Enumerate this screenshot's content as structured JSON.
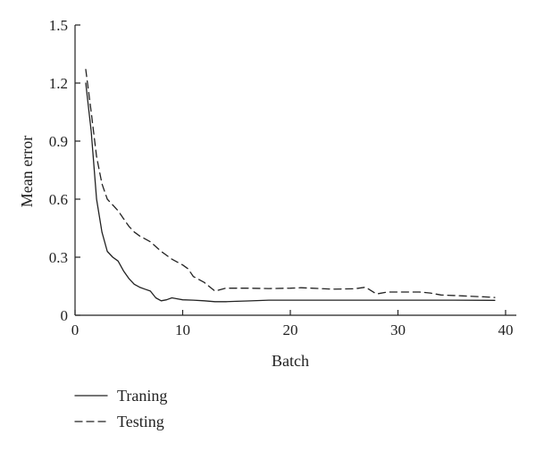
{
  "chart_data": {
    "type": "line",
    "xlabel": "Batch",
    "ylabel": "Mean error",
    "xlim": [
      0,
      41
    ],
    "ylim": [
      0,
      1.5
    ],
    "x_ticks": [
      0,
      10,
      20,
      30,
      40
    ],
    "y_ticks": [
      0,
      0.3,
      0.6,
      0.9,
      1.2,
      1.5
    ],
    "x_tick_labels": [
      "0",
      "10",
      "20",
      "30",
      "40"
    ],
    "y_tick_labels": [
      "0",
      "0.3",
      "0.6",
      "0.9",
      "1.2",
      "1.5"
    ],
    "grid": false,
    "legend_position": "bottom-left",
    "series": [
      {
        "name": "Traning",
        "style": "solid",
        "color": "#222222",
        "x": [
          1,
          1.5,
          2,
          2.5,
          3,
          3.5,
          4,
          4.5,
          5,
          5.5,
          6,
          6.5,
          7,
          7.5,
          8,
          8.5,
          9,
          9.5,
          10,
          11,
          12,
          13,
          14,
          15,
          16,
          18,
          20,
          25,
          30,
          35,
          39
        ],
        "y": [
          1.2,
          0.95,
          0.6,
          0.43,
          0.33,
          0.3,
          0.28,
          0.23,
          0.19,
          0.16,
          0.145,
          0.135,
          0.125,
          0.09,
          0.075,
          0.08,
          0.09,
          0.085,
          0.08,
          0.078,
          0.075,
          0.07,
          0.07,
          0.072,
          0.074,
          0.078,
          0.078,
          0.078,
          0.078,
          0.078,
          0.077
        ]
      },
      {
        "name": "Testing",
        "style": "dashed",
        "color": "#222222",
        "x": [
          1,
          1.5,
          2,
          2.5,
          3,
          3.5,
          4,
          4.5,
          5,
          5.5,
          6,
          7,
          8,
          9,
          10,
          10.5,
          11,
          12,
          13,
          14,
          16,
          18,
          20,
          21,
          22,
          24,
          26,
          27,
          28,
          29,
          30,
          32,
          33,
          34,
          36,
          38,
          39
        ],
        "y": [
          1.27,
          1.05,
          0.82,
          0.68,
          0.6,
          0.57,
          0.54,
          0.5,
          0.46,
          0.43,
          0.41,
          0.38,
          0.33,
          0.29,
          0.26,
          0.24,
          0.2,
          0.17,
          0.125,
          0.14,
          0.14,
          0.138,
          0.14,
          0.142,
          0.14,
          0.135,
          0.137,
          0.145,
          0.11,
          0.12,
          0.12,
          0.12,
          0.115,
          0.105,
          0.1,
          0.095,
          0.092
        ]
      }
    ]
  }
}
